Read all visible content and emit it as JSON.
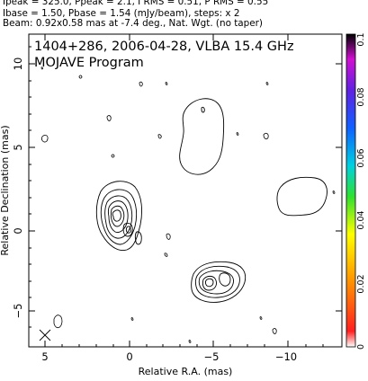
{
  "header": {
    "line1": "Ipeak = 325.0, Ppeak = 2.1, I RMS = 0.51, P RMS = 0.55",
    "line2": "Ibase = 1.50, Pbase = 1.54 (mJy/beam), steps: x 2",
    "line3": "Beam: 0.92x0.58 mas at -7.4 deg., Nat. Wgt. (no taper)"
  },
  "plot": {
    "title": "1404+286, 2006-04-28, VLBA 15.4 GHz",
    "subtitle": "MOJAVE Program",
    "xlabel": "Relative R.A. (mas)",
    "ylabel": "Relative Declination (mas)",
    "x_ticks": [
      "5",
      "0",
      "−5",
      "−10"
    ],
    "y_ticks": [
      "10",
      "5",
      "0",
      "−5"
    ]
  },
  "colorbar": {
    "ticks": [
      "0.1",
      "0.08",
      "0.06",
      "0.04",
      "0.02",
      "0"
    ]
  }
}
